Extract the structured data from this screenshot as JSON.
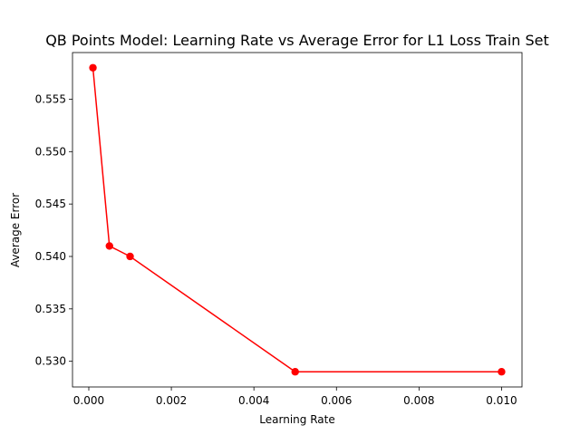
{
  "chart_data": {
    "type": "line",
    "title": "QB Points Model: Learning Rate vs Average Error for L1 Loss Train Set",
    "xlabel": "Learning Rate",
    "ylabel": "Average Error",
    "x": [
      0.0001,
      0.0005,
      0.001,
      0.005,
      0.01
    ],
    "series": [
      {
        "values": [
          0.558,
          0.541,
          0.54,
          0.529,
          0.529
        ],
        "color": "#ff0000",
        "marker": "circle"
      }
    ],
    "xlim": [
      -0.000395,
      0.010495
    ],
    "ylim": [
      0.52755,
      0.55945
    ],
    "xticks": [
      {
        "value": 0.0,
        "label": "0.000"
      },
      {
        "value": 0.002,
        "label": "0.002"
      },
      {
        "value": 0.004,
        "label": "0.004"
      },
      {
        "value": 0.006,
        "label": "0.006"
      },
      {
        "value": 0.008,
        "label": "0.008"
      },
      {
        "value": 0.01,
        "label": "0.010"
      }
    ],
    "yticks": [
      {
        "value": 0.53,
        "label": "0.530"
      },
      {
        "value": 0.535,
        "label": "0.535"
      },
      {
        "value": 0.54,
        "label": "0.540"
      },
      {
        "value": 0.545,
        "label": "0.545"
      },
      {
        "value": 0.55,
        "label": "0.550"
      },
      {
        "value": 0.555,
        "label": "0.555"
      }
    ],
    "grid": false,
    "legend": false
  }
}
